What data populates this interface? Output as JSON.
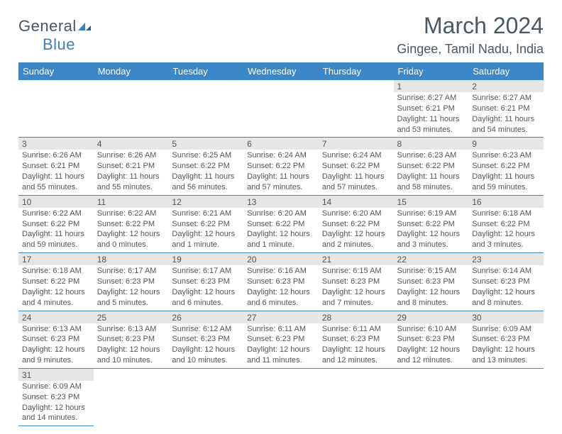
{
  "logo": {
    "text1": "General",
    "text2": "Blue"
  },
  "title": "March 2024",
  "location": "Gingee, Tamil Nadu, India",
  "colors": {
    "header_bg": "#3b87c8",
    "header_text": "#ffffff",
    "daynum_bg": "#e6e6e6",
    "text": "#555555",
    "rule": "#3b87c8",
    "title_color": "#4a5862"
  },
  "typography": {
    "title_fontsize": 32,
    "location_fontsize": 18,
    "header_fontsize": 13,
    "cell_fontsize": 11
  },
  "dayHeaders": [
    "Sunday",
    "Monday",
    "Tuesday",
    "Wednesday",
    "Thursday",
    "Friday",
    "Saturday"
  ],
  "weeks": [
    [
      null,
      null,
      null,
      null,
      null,
      {
        "n": "1",
        "sunrise": "Sunrise: 6:27 AM",
        "sunset": "Sunset: 6:21 PM",
        "daylight": "Daylight: 11 hours and 53 minutes."
      },
      {
        "n": "2",
        "sunrise": "Sunrise: 6:27 AM",
        "sunset": "Sunset: 6:21 PM",
        "daylight": "Daylight: 11 hours and 54 minutes."
      }
    ],
    [
      {
        "n": "3",
        "sunrise": "Sunrise: 6:26 AM",
        "sunset": "Sunset: 6:21 PM",
        "daylight": "Daylight: 11 hours and 55 minutes."
      },
      {
        "n": "4",
        "sunrise": "Sunrise: 6:26 AM",
        "sunset": "Sunset: 6:21 PM",
        "daylight": "Daylight: 11 hours and 55 minutes."
      },
      {
        "n": "5",
        "sunrise": "Sunrise: 6:25 AM",
        "sunset": "Sunset: 6:22 PM",
        "daylight": "Daylight: 11 hours and 56 minutes."
      },
      {
        "n": "6",
        "sunrise": "Sunrise: 6:24 AM",
        "sunset": "Sunset: 6:22 PM",
        "daylight": "Daylight: 11 hours and 57 minutes."
      },
      {
        "n": "7",
        "sunrise": "Sunrise: 6:24 AM",
        "sunset": "Sunset: 6:22 PM",
        "daylight": "Daylight: 11 hours and 57 minutes."
      },
      {
        "n": "8",
        "sunrise": "Sunrise: 6:23 AM",
        "sunset": "Sunset: 6:22 PM",
        "daylight": "Daylight: 11 hours and 58 minutes."
      },
      {
        "n": "9",
        "sunrise": "Sunrise: 6:23 AM",
        "sunset": "Sunset: 6:22 PM",
        "daylight": "Daylight: 11 hours and 59 minutes."
      }
    ],
    [
      {
        "n": "10",
        "sunrise": "Sunrise: 6:22 AM",
        "sunset": "Sunset: 6:22 PM",
        "daylight": "Daylight: 11 hours and 59 minutes."
      },
      {
        "n": "11",
        "sunrise": "Sunrise: 6:22 AM",
        "sunset": "Sunset: 6:22 PM",
        "daylight": "Daylight: 12 hours and 0 minutes."
      },
      {
        "n": "12",
        "sunrise": "Sunrise: 6:21 AM",
        "sunset": "Sunset: 6:22 PM",
        "daylight": "Daylight: 12 hours and 1 minute."
      },
      {
        "n": "13",
        "sunrise": "Sunrise: 6:20 AM",
        "sunset": "Sunset: 6:22 PM",
        "daylight": "Daylight: 12 hours and 1 minute."
      },
      {
        "n": "14",
        "sunrise": "Sunrise: 6:20 AM",
        "sunset": "Sunset: 6:22 PM",
        "daylight": "Daylight: 12 hours and 2 minutes."
      },
      {
        "n": "15",
        "sunrise": "Sunrise: 6:19 AM",
        "sunset": "Sunset: 6:22 PM",
        "daylight": "Daylight: 12 hours and 3 minutes."
      },
      {
        "n": "16",
        "sunrise": "Sunrise: 6:18 AM",
        "sunset": "Sunset: 6:22 PM",
        "daylight": "Daylight: 12 hours and 3 minutes."
      }
    ],
    [
      {
        "n": "17",
        "sunrise": "Sunrise: 6:18 AM",
        "sunset": "Sunset: 6:22 PM",
        "daylight": "Daylight: 12 hours and 4 minutes."
      },
      {
        "n": "18",
        "sunrise": "Sunrise: 6:17 AM",
        "sunset": "Sunset: 6:23 PM",
        "daylight": "Daylight: 12 hours and 5 minutes."
      },
      {
        "n": "19",
        "sunrise": "Sunrise: 6:17 AM",
        "sunset": "Sunset: 6:23 PM",
        "daylight": "Daylight: 12 hours and 6 minutes."
      },
      {
        "n": "20",
        "sunrise": "Sunrise: 6:16 AM",
        "sunset": "Sunset: 6:23 PM",
        "daylight": "Daylight: 12 hours and 6 minutes."
      },
      {
        "n": "21",
        "sunrise": "Sunrise: 6:15 AM",
        "sunset": "Sunset: 6:23 PM",
        "daylight": "Daylight: 12 hours and 7 minutes."
      },
      {
        "n": "22",
        "sunrise": "Sunrise: 6:15 AM",
        "sunset": "Sunset: 6:23 PM",
        "daylight": "Daylight: 12 hours and 8 minutes."
      },
      {
        "n": "23",
        "sunrise": "Sunrise: 6:14 AM",
        "sunset": "Sunset: 6:23 PM",
        "daylight": "Daylight: 12 hours and 8 minutes."
      }
    ],
    [
      {
        "n": "24",
        "sunrise": "Sunrise: 6:13 AM",
        "sunset": "Sunset: 6:23 PM",
        "daylight": "Daylight: 12 hours and 9 minutes."
      },
      {
        "n": "25",
        "sunrise": "Sunrise: 6:13 AM",
        "sunset": "Sunset: 6:23 PM",
        "daylight": "Daylight: 12 hours and 10 minutes."
      },
      {
        "n": "26",
        "sunrise": "Sunrise: 6:12 AM",
        "sunset": "Sunset: 6:23 PM",
        "daylight": "Daylight: 12 hours and 10 minutes."
      },
      {
        "n": "27",
        "sunrise": "Sunrise: 6:11 AM",
        "sunset": "Sunset: 6:23 PM",
        "daylight": "Daylight: 12 hours and 11 minutes."
      },
      {
        "n": "28",
        "sunrise": "Sunrise: 6:11 AM",
        "sunset": "Sunset: 6:23 PM",
        "daylight": "Daylight: 12 hours and 12 minutes."
      },
      {
        "n": "29",
        "sunrise": "Sunrise: 6:10 AM",
        "sunset": "Sunset: 6:23 PM",
        "daylight": "Daylight: 12 hours and 12 minutes."
      },
      {
        "n": "30",
        "sunrise": "Sunrise: 6:09 AM",
        "sunset": "Sunset: 6:23 PM",
        "daylight": "Daylight: 12 hours and 13 minutes."
      }
    ],
    [
      {
        "n": "31",
        "sunrise": "Sunrise: 6:09 AM",
        "sunset": "Sunset: 6:23 PM",
        "daylight": "Daylight: 12 hours and 14 minutes."
      },
      null,
      null,
      null,
      null,
      null,
      null
    ]
  ]
}
